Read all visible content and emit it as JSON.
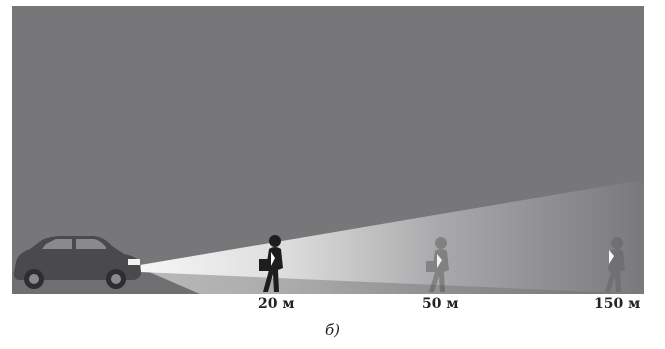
{
  "figure": {
    "distance_labels": [
      "20 м",
      "50 м",
      "150 м"
    ],
    "caption": "б)"
  },
  "colors": {
    "sky": "#77777a",
    "ground": "#6f6f72",
    "car": "#4a4a4d",
    "beam_near": "#f4f4f4",
    "pedestrian": "#1e1e1e"
  },
  "icons": [
    "car-icon",
    "pedestrian-icon",
    "reflector-icon"
  ]
}
